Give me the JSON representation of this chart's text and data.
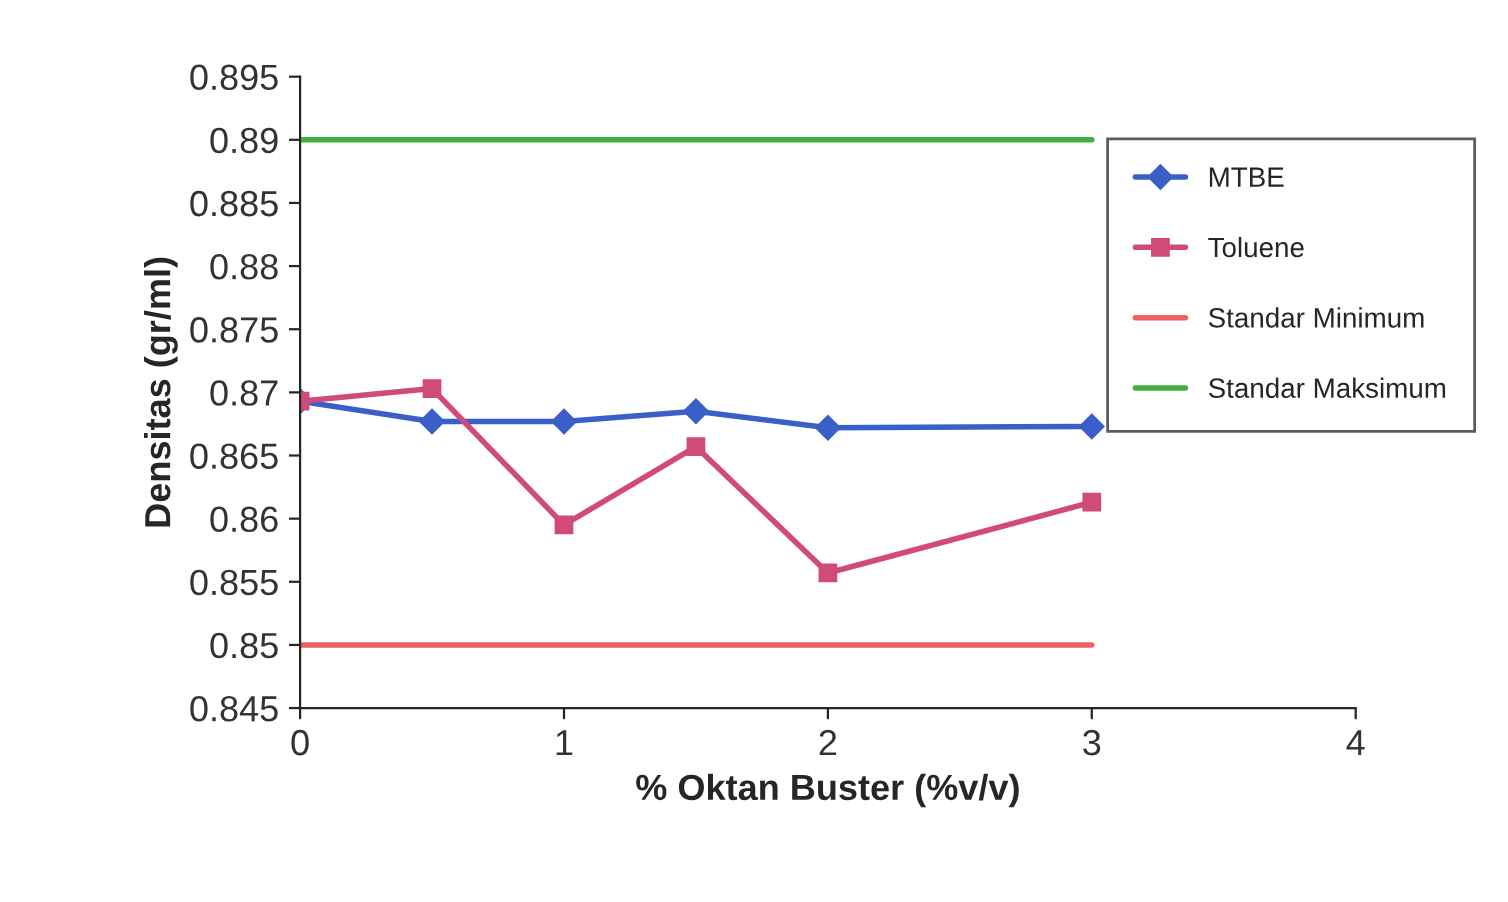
{
  "chart_data": {
    "type": "line",
    "xlabel": "% Oktan Buster (%v/v)",
    "ylabel": "Densitas (gr/ml)",
    "xlim": [
      0,
      4
    ],
    "xticks": [
      0,
      1,
      2,
      3,
      4
    ],
    "ylim": [
      0.845,
      0.895
    ],
    "yticks": [
      0.845,
      0.85,
      0.855,
      0.86,
      0.865,
      0.87,
      0.875,
      0.88,
      0.885,
      0.89,
      0.895
    ],
    "grid": false,
    "legend": "right",
    "series": [
      {
        "name": "MTBE",
        "color": "#3a5fc8",
        "marker": "diamond",
        "x": [
          0,
          0.5,
          1,
          1.5,
          2,
          3
        ],
        "values": [
          0.8693,
          0.8677,
          0.8677,
          0.8685,
          0.8672,
          0.8673
        ]
      },
      {
        "name": "Toluene",
        "color": "#d04a7a",
        "marker": "square",
        "x": [
          0,
          0.5,
          1,
          1.5,
          2,
          3
        ],
        "values": [
          0.8693,
          0.8703,
          0.8595,
          0.8657,
          0.8557,
          0.8613
        ]
      },
      {
        "name": "Standar Minimum",
        "color": "#f06060",
        "marker": "none",
        "x": [
          0,
          3
        ],
        "values": [
          0.85,
          0.85
        ]
      },
      {
        "name": "Standar Maksimum",
        "color": "#40b040",
        "marker": "none",
        "x": [
          0,
          3
        ],
        "values": [
          0.89,
          0.89
        ]
      }
    ]
  }
}
